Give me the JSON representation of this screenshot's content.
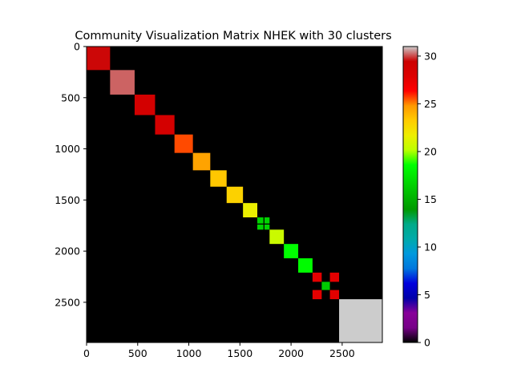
{
  "chart_data": {
    "type": "heatmap",
    "title": "Community Visualization Matrix NHEK with 30 clusters",
    "xlabel": "",
    "ylabel": "",
    "matrix_size": 2893,
    "xlim": [
      0,
      2893
    ],
    "ylim": [
      2893,
      0
    ],
    "x_ticks": [
      0,
      500,
      1000,
      1500,
      2000,
      2500
    ],
    "y_ticks": [
      0,
      500,
      1000,
      1500,
      2000,
      2500
    ],
    "x_tick_labels": [
      "0",
      "500",
      "1000",
      "1500",
      "2000",
      "2500"
    ],
    "y_tick_labels": [
      "0",
      "500",
      "1000",
      "1500",
      "2000",
      "2500"
    ],
    "colorbar": {
      "colormap": "nipy_spectral",
      "range": [
        0,
        31
      ],
      "ticks": [
        0,
        5,
        10,
        15,
        20,
        25,
        30
      ],
      "tick_labels": [
        "0",
        "5",
        "10",
        "15",
        "20",
        "25",
        "30"
      ]
    },
    "background_value": 0,
    "blocks": [
      {
        "row": [
          0,
          230
        ],
        "col": [
          0,
          230
        ],
        "value": 29.5
      },
      {
        "row": [
          230,
          470
        ],
        "col": [
          230,
          470
        ],
        "value": 30.2
      },
      {
        "row": [
          470,
          670
        ],
        "col": [
          470,
          670
        ],
        "value": 28.8
      },
      {
        "row": [
          670,
          860
        ],
        "col": [
          670,
          860
        ],
        "value": 28.7
      },
      {
        "row": [
          860,
          1040
        ],
        "col": [
          860,
          1040
        ],
        "value": 25.6
      },
      {
        "row": [
          1040,
          1210
        ],
        "col": [
          1040,
          1210
        ],
        "value": 24.5
      },
      {
        "row": [
          1210,
          1370
        ],
        "col": [
          1210,
          1370
        ],
        "value": 23.4
      },
      {
        "row": [
          1370,
          1530
        ],
        "col": [
          1370,
          1530
        ],
        "value": 23.0
      },
      {
        "row": [
          1530,
          1670
        ],
        "col": [
          1530,
          1670
        ],
        "value": 21.6
      },
      {
        "row": [
          1670,
          1730
        ],
        "col": [
          1670,
          1730
        ],
        "value": 16.6
      },
      {
        "row": [
          1670,
          1730
        ],
        "col": [
          1740,
          1790
        ],
        "value": 16.6
      },
      {
        "row": [
          1740,
          1790
        ],
        "col": [
          1670,
          1730
        ],
        "value": 16.6
      },
      {
        "row": [
          1740,
          1790
        ],
        "col": [
          1740,
          1790
        ],
        "value": 16.6
      },
      {
        "row": [
          1790,
          1930
        ],
        "col": [
          1790,
          1930
        ],
        "value": 20.6
      },
      {
        "row": [
          1930,
          2070
        ],
        "col": [
          1930,
          2070
        ],
        "value": 18.6
      },
      {
        "row": [
          2070,
          2210
        ],
        "col": [
          2070,
          2210
        ],
        "value": 18.4
      },
      {
        "row": [
          2210,
          2300
        ],
        "col": [
          2210,
          2300
        ],
        "value": 27.6
      },
      {
        "row": [
          2210,
          2300
        ],
        "col": [
          2380,
          2470
        ],
        "value": 27.6
      },
      {
        "row": [
          2300,
          2380
        ],
        "col": [
          2300,
          2380
        ],
        "value": 16.2
      },
      {
        "row": [
          2380,
          2470
        ],
        "col": [
          2210,
          2300
        ],
        "value": 27.6
      },
      {
        "row": [
          2380,
          2470
        ],
        "col": [
          2380,
          2470
        ],
        "value": 27.6
      },
      {
        "row": [
          2470,
          2893
        ],
        "col": [
          2470,
          2893
        ],
        "value": 31.0
      }
    ]
  }
}
